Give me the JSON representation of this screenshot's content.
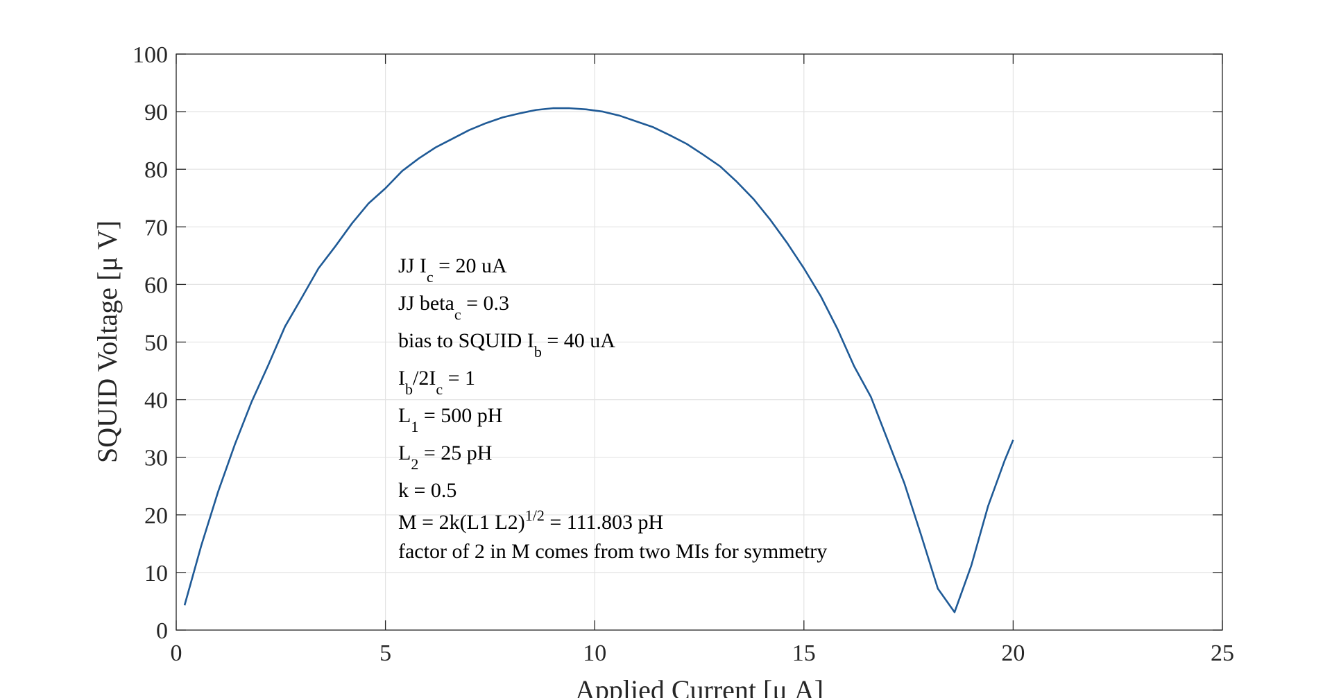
{
  "chart_data": {
    "type": "line",
    "title": "",
    "xlabel": "Applied Current [μ A]",
    "ylabel": "SQUID Voltage [μ V]",
    "xlim": [
      0,
      25
    ],
    "ylim": [
      0,
      100
    ],
    "xticks": [
      "0",
      "5",
      "10",
      "15",
      "20",
      "25"
    ],
    "yticks": [
      "0",
      "10",
      "20",
      "30",
      "40",
      "50",
      "60",
      "70",
      "80",
      "90",
      "100"
    ],
    "grid": true,
    "line_color": "#1f5a96",
    "series": [
      {
        "x": [
          0.2,
          0.6,
          1.0,
          1.4,
          1.8,
          2.2,
          2.6,
          3.0,
          3.4,
          3.8,
          4.2,
          4.6,
          5.0,
          5.4,
          5.8,
          6.2,
          6.6,
          7.0,
          7.4,
          7.8,
          8.2,
          8.6,
          9.0,
          9.4,
          9.8,
          10.2,
          10.6,
          11.0,
          11.4,
          11.8,
          12.2,
          12.6,
          13.0,
          13.4,
          13.8,
          14.2,
          14.6,
          15.0,
          15.4,
          15.8,
          16.2,
          16.6,
          17.0,
          17.4,
          17.8,
          18.2,
          18.6,
          19.0,
          19.4,
          19.8,
          20.0
        ],
        "y": [
          4.3,
          14.7,
          24.0,
          32.2,
          39.6,
          46.0,
          52.7,
          57.7,
          62.8,
          66.6,
          70.6,
          74.1,
          76.7,
          79.7,
          81.9,
          83.8,
          85.3,
          86.8,
          88.0,
          89.0,
          89.7,
          90.3,
          90.6,
          90.6,
          90.4,
          90.0,
          89.3,
          88.3,
          87.3,
          85.9,
          84.4,
          82.5,
          80.5,
          77.8,
          74.8,
          71.2,
          67.2,
          62.8,
          58.0,
          52.3,
          45.8,
          40.5,
          33.0,
          25.5,
          16.5,
          7.2,
          3.1,
          11.2,
          21.5,
          29.5,
          33.0
        ]
      }
    ]
  },
  "annotation": {
    "line1": {
      "prefix": "JJ I",
      "sub": "c",
      "suffix": " = 20 uA"
    },
    "line2": {
      "prefix": "JJ beta",
      "sub": "c",
      "suffix": " = 0.3"
    },
    "line3": {
      "prefix": "bias to SQUID I",
      "sub": "b",
      "suffix": " = 40 uA"
    },
    "line4": {
      "p1": "I",
      "s1": "b",
      "p2": "/2I",
      "s2": "c",
      "suffix": " = 1"
    },
    "line5": {
      "prefix": "L",
      "sub": "1",
      "suffix": " = 500 pH"
    },
    "line6": {
      "prefix": "L",
      "sub": "2",
      "suffix": " = 25 pH"
    },
    "line7": "k = 0.5",
    "line8": {
      "prefix": "M = 2k(L1 L2)",
      "sup": "1/2",
      "suffix": " = 111.803 pH"
    },
    "line9": "factor of 2 in M comes from two MIs for symmetry"
  }
}
